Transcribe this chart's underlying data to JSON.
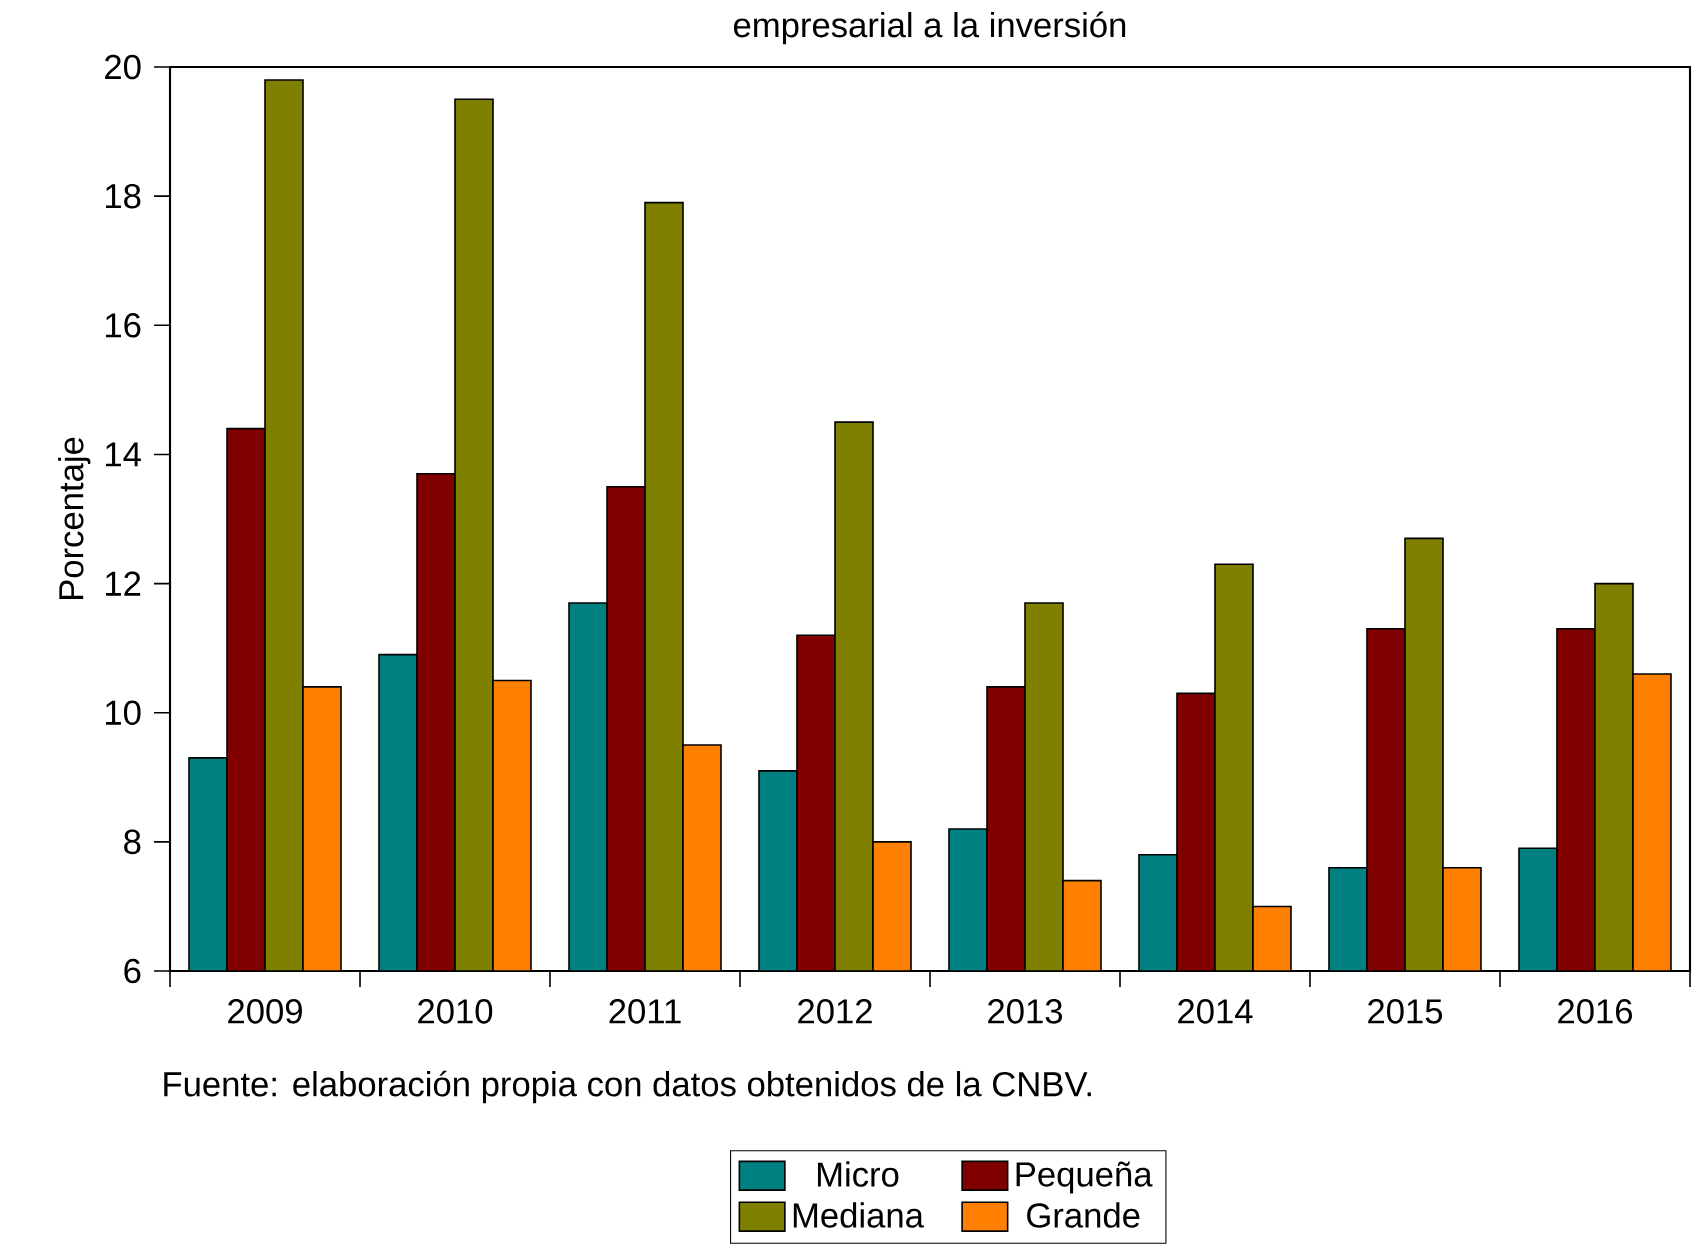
{
  "chart_data": {
    "type": "bar",
    "title": "empresarial a la inversión",
    "ylabel": "Porcentaje",
    "categories": [
      "2009",
      "2010",
      "2011",
      "2012",
      "2013",
      "2014",
      "2015",
      "2016"
    ],
    "series": [
      {
        "name": "Micro",
        "color": "#008080",
        "values": [
          9.3,
          10.9,
          11.7,
          9.1,
          8.2,
          7.8,
          7.6,
          7.9
        ]
      },
      {
        "name": "Pequeña",
        "color": "#800000",
        "values": [
          14.4,
          13.7,
          13.5,
          11.2,
          10.4,
          10.3,
          11.3,
          11.3
        ]
      },
      {
        "name": "Mediana",
        "color": "#808000",
        "values": [
          19.8,
          19.5,
          17.9,
          14.5,
          11.7,
          12.3,
          12.7,
          12.0
        ]
      },
      {
        "name": "Grande",
        "color": "#ff8000",
        "values": [
          10.4,
          10.5,
          9.5,
          8.0,
          7.4,
          7.0,
          7.6,
          10.6
        ]
      }
    ],
    "ylim": [
      6,
      20
    ],
    "yticks": [
      6,
      8,
      10,
      12,
      14,
      16,
      18,
      20
    ],
    "legend": "bottom",
    "grid": false,
    "annotations": [
      "Fuente: elaboración propia con datos obtenidos de la CNBV."
    ]
  }
}
